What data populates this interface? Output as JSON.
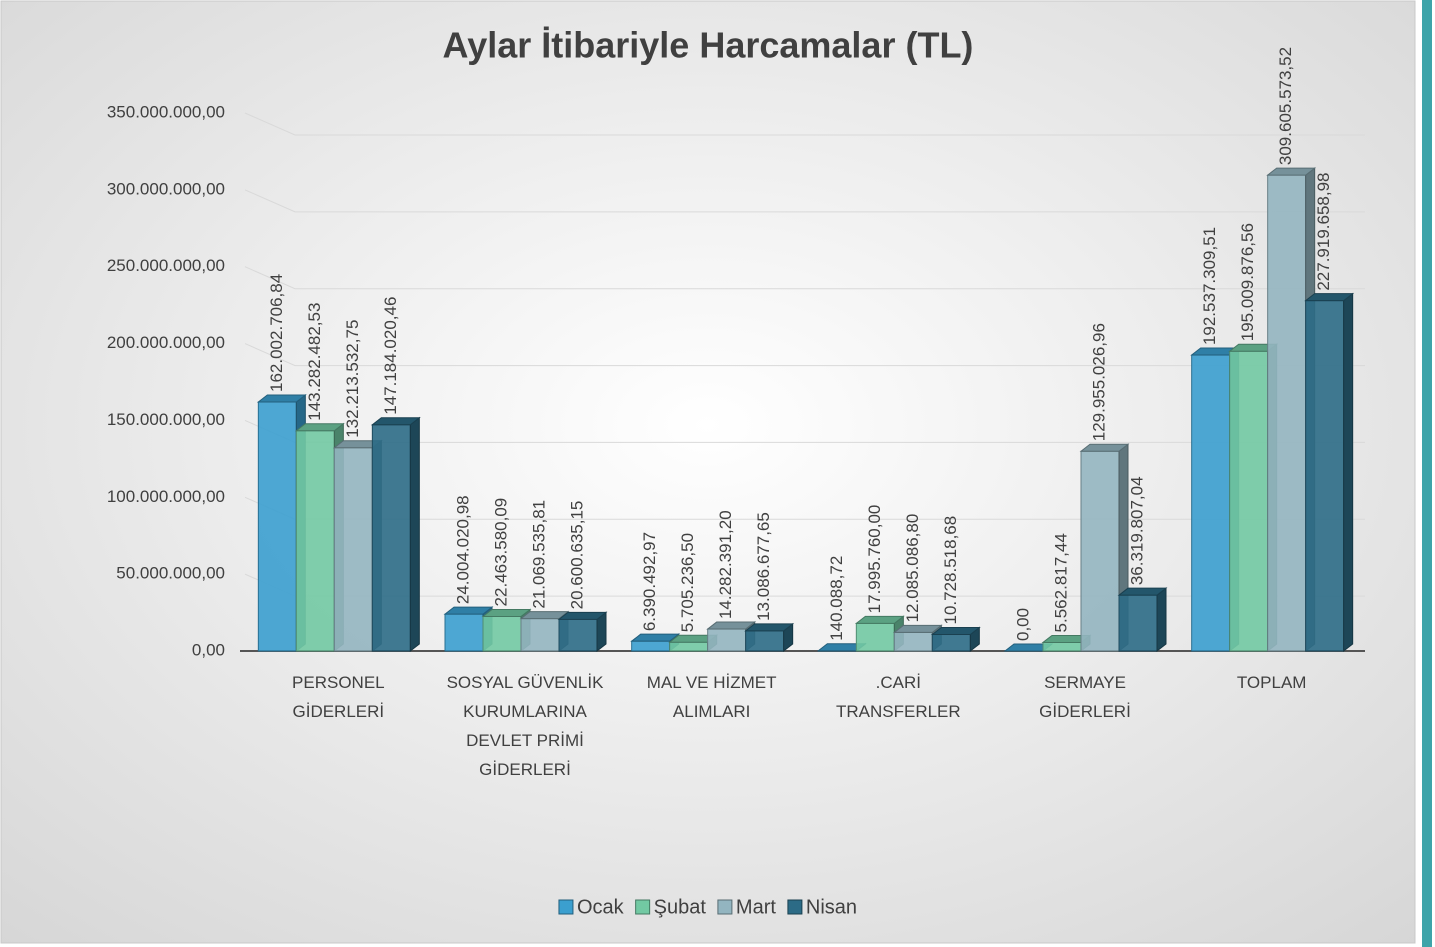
{
  "chart_data": {
    "type": "bar3d",
    "title": "Aylar İtibariyle Harcamalar (TL)",
    "categories": [
      "PERSONEL GİDERLERİ",
      "SOSYAL GÜVENLİK KURUMLARINA DEVLET PRİMİ GİDERLERİ",
      "MAL VE HİZMET ALIMLARI",
      ".CARİ TRANSFERLER",
      "SERMAYE GİDERLERİ",
      "TOPLAM"
    ],
    "series": [
      {
        "name": "Ocak",
        "color": "#3b9fcf",
        "values": [
          162002706.84,
          24004020.98,
          6390492.97,
          140088.72,
          0,
          192537309.51
        ],
        "value_labels": [
          "162.002.706,84",
          "24.004.020,98",
          "6.390.492,97",
          "140.088,72",
          "0,00",
          "192.537.309,51"
        ]
      },
      {
        "name": "Şubat",
        "color": "#72c9a3",
        "values": [
          143282482.53,
          22463580.09,
          5705236.5,
          17995760.0,
          5562817.44,
          195009876.56
        ],
        "value_labels": [
          "143.282.482,53",
          "22.463.580,09",
          "5.705.236,50",
          "17.995.760,00",
          "5.562.817,44",
          "195.009.876,56"
        ]
      },
      {
        "name": "Mart",
        "color": "#93b5c0",
        "values": [
          132213532.75,
          21069535.81,
          14282391.2,
          12085086.8,
          129955026.96,
          309605573.52
        ],
        "value_labels": [
          "132.213.532,75",
          "21.069.535,81",
          "14.282.391,20",
          "12.085.086,80",
          "129.955.026,96",
          "309.605.573,52"
        ]
      },
      {
        "name": "Nisan",
        "color": "#2c6b86",
        "values": [
          147184020.46,
          20600635.15,
          13086677.65,
          10728518.68,
          36319807.04,
          227919658.98
        ],
        "value_labels": [
          "147.184.020,46",
          "20.600.635,15",
          "13.086.677,65",
          "10.728.518,68",
          "36.319.807,04",
          "227.919.658,98"
        ]
      }
    ],
    "ylim": [
      0,
      350000000
    ],
    "yticks": [
      {
        "value": 0,
        "label": "0,00"
      },
      {
        "value": 50000000,
        "label": "50.000.000,00"
      },
      {
        "value": 100000000,
        "label": "100.000.000,00"
      },
      {
        "value": 150000000,
        "label": "150.000.000,00"
      },
      {
        "value": 200000000,
        "label": "200.000.000,00"
      },
      {
        "value": 250000000,
        "label": "250.000.000,00"
      },
      {
        "value": 300000000,
        "label": "300.000.000,00"
      },
      {
        "value": 350000000,
        "label": "350.000.000,00"
      }
    ],
    "grid": true,
    "legend": "bottom"
  }
}
